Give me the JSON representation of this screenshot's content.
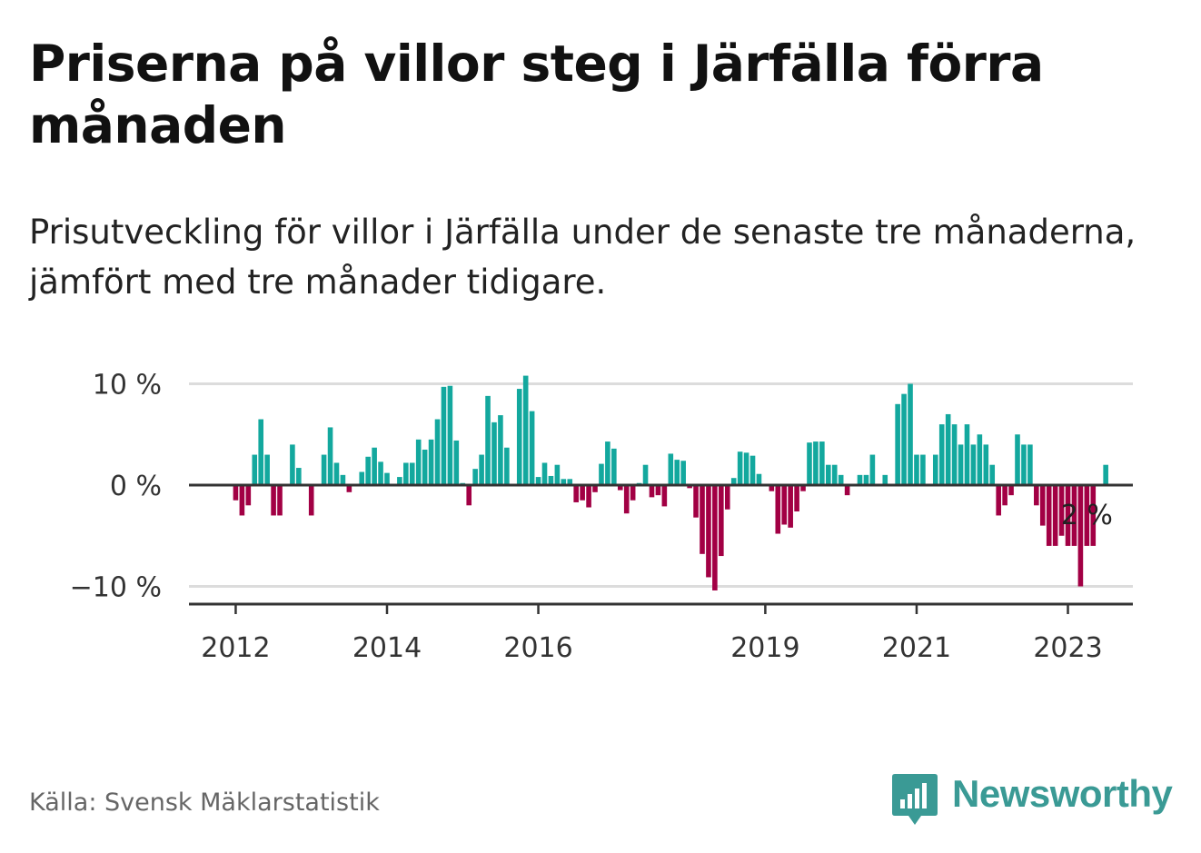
{
  "title": "Priserna på villor steg i Järfälla förra månaden",
  "subtitle": "Prisutveckling för villor i Järfälla under de senaste tre månaderna, jämfört med tre månader tidigare.",
  "source": "Källa: Svensk Mäklarstatistik",
  "brand": "Newsworthy",
  "colors": {
    "positive": "#13a89e",
    "negative": "#a20044",
    "brand": "#3a9a95",
    "text": "#111111",
    "muted": "#666666",
    "grid": "#dcdcdc",
    "axis": "#333333"
  },
  "chart_data": {
    "type": "bar",
    "title": "Priserna på villor steg i Järfälla förra månaden",
    "xlabel": "",
    "ylabel": "",
    "unit": "%",
    "start_month": "2011-12",
    "ylim": [
      -12,
      10.5
    ],
    "y_ticks": [
      {
        "value": 10,
        "label": "10 %"
      },
      {
        "value": 0,
        "label": "0 %"
      },
      {
        "value": -10,
        "label": "−10 %"
      }
    ],
    "x_ticks": [
      {
        "index": 1,
        "label": "2012"
      },
      {
        "index": 25,
        "label": "2014"
      },
      {
        "index": 49,
        "label": "2016"
      },
      {
        "index": 85,
        "label": "2019"
      },
      {
        "index": 109,
        "label": "2021"
      },
      {
        "index": 133,
        "label": "2023"
      }
    ],
    "annotation": {
      "index": 136,
      "label": "2 %"
    },
    "values": [
      0,
      -1.5,
      -3,
      -2,
      3,
      6.5,
      3,
      -3,
      -3,
      0,
      4,
      1.7,
      0,
      -3,
      0,
      3,
      5.7,
      2.2,
      1,
      -0.7,
      0,
      1.3,
      2.8,
      3.7,
      2.3,
      1.2,
      0,
      0.8,
      2.2,
      2.2,
      4.5,
      3.5,
      4.5,
      6.5,
      9.7,
      9.8,
      4.4,
      0.2,
      -2,
      1.6,
      3,
      8.8,
      6.2,
      6.9,
      3.7,
      0,
      9.5,
      10.8,
      7.3,
      0.8,
      2.2,
      0.9,
      2,
      0.6,
      0.6,
      -1.7,
      -1.5,
      -2.2,
      -0.7,
      2.1,
      4.3,
      3.6,
      -0.5,
      -2.8,
      -1.5,
      0.2,
      2,
      -1.2,
      -1,
      -2.1,
      3.1,
      2.5,
      2.4,
      -0.3,
      -3.2,
      -6.8,
      -9.1,
      -10.4,
      -7,
      -2.4,
      0.7,
      3.3,
      3.2,
      2.9,
      1.1,
      0,
      -0.6,
      -4.8,
      -3.9,
      -4.2,
      -2.6,
      -0.6,
      4.2,
      4.3,
      4.3,
      2,
      2,
      1,
      -1,
      0,
      1,
      1,
      3,
      0,
      1,
      0,
      8,
      9,
      10,
      3,
      3,
      0,
      3,
      6,
      7,
      6,
      4,
      6,
      4,
      5,
      4,
      2,
      -3,
      -2,
      -1,
      5,
      4,
      4,
      -2,
      -4,
      -6,
      -6,
      -5,
      -6,
      -6,
      -10,
      -6,
      -6,
      0,
      2
    ]
  }
}
